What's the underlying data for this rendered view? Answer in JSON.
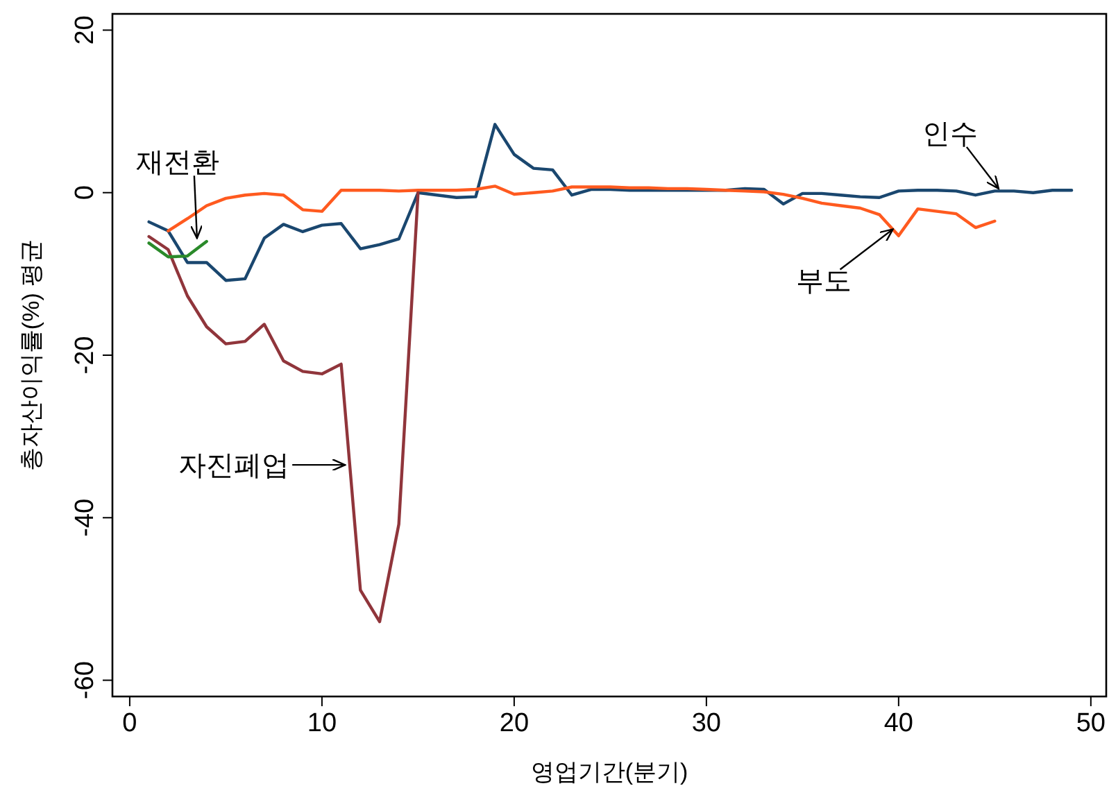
{
  "chart_data": {
    "type": "line",
    "xlabel": "영업기간(분기)",
    "ylabel": "총자산이익률(%) 평균",
    "xlim": [
      -0.9,
      50.8
    ],
    "ylim": [
      -62,
      22
    ],
    "xticks": [
      0,
      10,
      20,
      30,
      40,
      50
    ],
    "yticks": [
      -60,
      -40,
      -20,
      0,
      20
    ],
    "grid": false,
    "marker": "none",
    "line_style": "solid",
    "series": [
      {
        "color": "#1a476f",
        "x": [
          1,
          2,
          3,
          4,
          5,
          6,
          7,
          8,
          9,
          10,
          11,
          12,
          13,
          14,
          15,
          16,
          17,
          18,
          19,
          20,
          21,
          22,
          23,
          24,
          25,
          26,
          27,
          28,
          29,
          30,
          31,
          32,
          33,
          34,
          35,
          36,
          37,
          38,
          39,
          40,
          41,
          42,
          43,
          44,
          45,
          46,
          47,
          48,
          49
        ],
        "values": [
          -3.6,
          -4.7,
          -8.6,
          -8.6,
          -10.8,
          -10.6,
          -5.6,
          -3.9,
          -4.8,
          -4.0,
          -3.8,
          -6.9,
          -6.4,
          -5.7,
          0.0,
          -0.3,
          -0.6,
          -0.5,
          8.4,
          4.7,
          3.0,
          2.8,
          -0.3,
          0.4,
          0.4,
          0.3,
          0.3,
          0.3,
          0.3,
          0.3,
          0.3,
          0.5,
          0.4,
          -1.4,
          -0.1,
          -0.1,
          -0.3,
          -0.5,
          -0.6,
          0.2,
          0.3,
          0.3,
          0.2,
          -0.3,
          0.2,
          0.2,
          0.0,
          0.3,
          0.3
        ]
      },
      {
        "color": "#ff5a1f",
        "x": [
          2,
          3,
          4,
          5,
          6,
          7,
          8,
          9,
          10,
          11,
          12,
          13,
          14,
          15,
          16,
          17,
          18,
          19,
          20,
          21,
          22,
          23,
          24,
          25,
          26,
          27,
          28,
          29,
          30,
          31,
          32,
          33,
          34,
          35,
          36,
          37,
          38,
          39,
          40,
          41,
          42,
          43,
          44,
          45
        ],
        "values": [
          -4.7,
          -3.2,
          -1.6,
          -0.7,
          -0.3,
          -0.1,
          -0.3,
          -2.1,
          -2.3,
          0.3,
          0.3,
          0.3,
          0.2,
          0.3,
          0.3,
          0.3,
          0.4,
          0.8,
          -0.2,
          0.0,
          0.2,
          0.7,
          0.7,
          0.7,
          0.6,
          0.6,
          0.5,
          0.5,
          0.4,
          0.3,
          0.2,
          0.1,
          -0.2,
          -0.7,
          -1.3,
          -1.6,
          -1.9,
          -2.7,
          -5.3,
          -2.0,
          -2.3,
          -2.6,
          -4.3,
          -3.5
        ]
      },
      {
        "color": "#90353b",
        "x": [
          1,
          2,
          3,
          4,
          5,
          6,
          7,
          8,
          9,
          10,
          11,
          12,
          13,
          14,
          15
        ],
        "values": [
          -5.4,
          -7.0,
          -12.7,
          -16.5,
          -18.6,
          -18.3,
          -16.2,
          -20.7,
          -22.0,
          -22.3,
          -21.1,
          -48.9,
          -52.8,
          -40.8,
          0.0
        ]
      },
      {
        "color": "#2a8a2a",
        "x": [
          1,
          2,
          3,
          4
        ],
        "values": [
          -6.2,
          -7.9,
          -7.8,
          -6.0
        ]
      }
    ],
    "annotations": [
      {
        "text": "재전환",
        "x": 3.5,
        "y": -5.6
      },
      {
        "text": "자진폐업",
        "x": 11.2,
        "y": -33.5
      },
      {
        "text": "인수",
        "x": 45.2,
        "y": 0.5
      },
      {
        "text": "부도",
        "x": 39.7,
        "y": -4.5
      }
    ]
  }
}
